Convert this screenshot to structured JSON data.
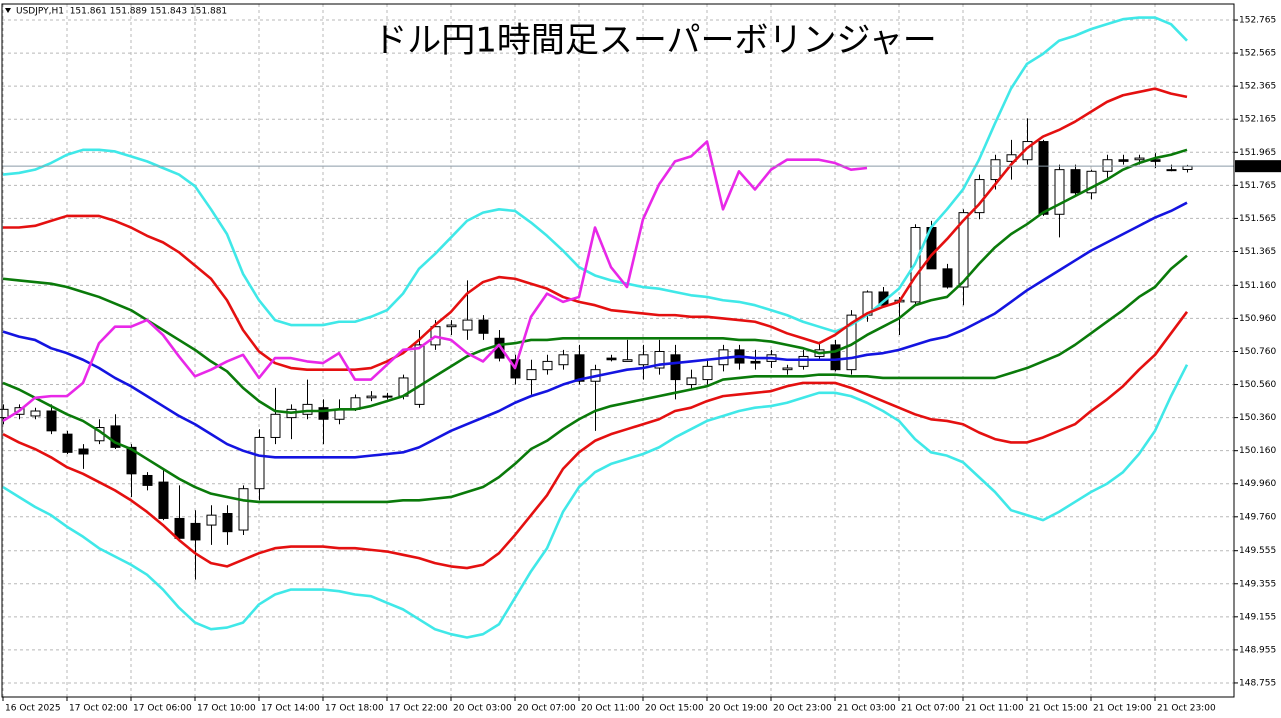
{
  "chart_data": {
    "type": "candlestick",
    "title": "ドル円1時間足スーパーボリンジャー",
    "symbol_info": "USDJPY,H1  151.861 151.889 151.843 151.881",
    "last_price": 151.881,
    "grid": true,
    "ylim": [
      148.67,
      152.862
    ],
    "yticks": [
      152.765,
      152.565,
      152.365,
      152.165,
      151.965,
      151.765,
      151.565,
      151.365,
      {
        "value": 151.16,
        "label": "151.160"
      },
      {
        "value": 150.96,
        "label": "150.960"
      },
      {
        "value": 150.76,
        "label": "150.760"
      },
      {
        "value": 150.56,
        "label": "150.560"
      },
      {
        "value": 150.36,
        "label": "150.360"
      },
      {
        "value": 150.16,
        "label": "150.160"
      },
      {
        "value": 149.96,
        "label": "149.960"
      },
      {
        "value": 149.76,
        "label": "149.760"
      },
      149.555,
      149.355,
      149.155,
      148.955,
      148.755
    ],
    "categories": [
      "16 Oct 2025",
      null,
      null,
      null,
      "17 Oct 02:00",
      null,
      null,
      null,
      "17 Oct 06:00",
      null,
      null,
      null,
      "17 Oct 10:00",
      null,
      null,
      null,
      "17 Oct 14:00",
      null,
      null,
      null,
      "17 Oct 18:00",
      null,
      null,
      null,
      "17 Oct 22:00",
      null,
      null,
      null,
      "20 Oct 03:00",
      null,
      null,
      null,
      "20 Oct 07:00",
      null,
      null,
      null,
      "20 Oct 11:00",
      null,
      null,
      null,
      "20 Oct 15:00",
      null,
      null,
      null,
      "20 Oct 19:00",
      null,
      null,
      null,
      "20 Oct 23:00",
      null,
      null,
      null,
      "21 Oct 03:00",
      null,
      null,
      null,
      "21 Oct 07:00",
      null,
      null,
      null,
      "21 Oct 11:00",
      null,
      null,
      null,
      "21 Oct 15:00",
      null,
      null,
      null,
      "21 Oct 19:00",
      null,
      null,
      null,
      "21 Oct 23:00",
      null,
      null
    ],
    "candles": {
      "up_color": "#ffffff",
      "down_color": "#000000",
      "open": [
        150.36,
        150.38,
        150.37,
        150.4,
        150.26,
        150.17,
        150.22,
        150.31,
        150.18,
        150.01,
        149.97,
        149.75,
        149.72,
        149.71,
        149.78,
        149.68,
        149.93,
        150.24,
        150.36,
        150.38,
        150.42,
        150.35,
        150.41,
        150.48,
        150.49,
        150.49,
        150.44,
        150.8,
        150.91,
        150.89,
        150.95,
        150.84,
        150.71,
        150.59,
        150.65,
        150.68,
        150.74,
        150.58,
        150.72,
        150.7,
        150.68,
        150.66,
        150.74,
        150.56,
        150.59,
        150.68,
        150.77,
        150.7,
        150.7,
        150.65,
        150.67,
        150.73,
        150.8,
        150.65,
        150.98,
        151.12,
        151.06,
        151.06,
        151.51,
        151.26,
        151.15,
        151.6,
        151.8,
        151.91,
        151.92,
        152.03,
        151.59,
        151.86,
        151.72,
        151.85,
        151.92,
        151.92,
        151.92,
        151.86,
        151.861
      ],
      "high": [
        150.44,
        150.44,
        150.42,
        150.44,
        150.28,
        150.2,
        150.35,
        150.38,
        150.2,
        150.03,
        150.05,
        149.95,
        149.8,
        149.83,
        149.83,
        149.95,
        150.29,
        150.54,
        150.44,
        150.59,
        150.47,
        150.47,
        150.5,
        150.52,
        150.51,
        150.62,
        150.89,
        150.95,
        150.95,
        151.19,
        150.98,
        150.89,
        150.74,
        150.71,
        150.74,
        150.77,
        150.8,
        150.68,
        150.74,
        150.83,
        150.8,
        150.83,
        150.8,
        150.65,
        150.71,
        150.8,
        150.8,
        150.77,
        150.77,
        150.68,
        150.77,
        150.82,
        150.83,
        151.01,
        151.13,
        151.15,
        151.09,
        151.53,
        151.55,
        151.29,
        151.62,
        151.83,
        151.95,
        152.04,
        152.17,
        152.04,
        151.89,
        151.89,
        151.86,
        151.95,
        151.95,
        151.95,
        151.96,
        151.89,
        151.889
      ],
      "low": [
        150.32,
        150.35,
        150.35,
        150.26,
        150.14,
        150.05,
        150.2,
        150.17,
        149.88,
        149.92,
        149.74,
        149.62,
        149.38,
        149.59,
        149.59,
        149.65,
        149.86,
        150.2,
        150.23,
        150.35,
        150.2,
        150.32,
        150.4,
        150.46,
        150.47,
        150.47,
        150.42,
        150.77,
        150.86,
        150.83,
        150.83,
        150.7,
        150.56,
        150.5,
        150.62,
        150.65,
        150.56,
        150.28,
        150.7,
        150.7,
        150.59,
        150.62,
        150.47,
        150.53,
        150.56,
        150.64,
        150.65,
        150.65,
        150.66,
        150.62,
        150.65,
        150.71,
        150.64,
        150.62,
        150.94,
        151.04,
        150.86,
        151.04,
        151.26,
        151.14,
        151.04,
        151.56,
        151.74,
        151.8,
        151.89,
        151.58,
        151.45,
        151.7,
        151.68,
        151.81,
        151.89,
        151.89,
        151.87,
        151.85,
        151.843
      ],
      "close": [
        150.41,
        150.42,
        150.4,
        150.28,
        150.15,
        150.14,
        150.3,
        150.18,
        150.02,
        149.95,
        149.75,
        149.63,
        149.62,
        149.77,
        149.67,
        149.93,
        150.24,
        150.38,
        150.41,
        150.44,
        150.35,
        150.41,
        150.48,
        150.49,
        150.49,
        150.6,
        150.8,
        150.91,
        150.92,
        150.95,
        150.87,
        150.72,
        150.6,
        150.65,
        150.7,
        150.74,
        150.58,
        150.65,
        150.71,
        150.71,
        150.74,
        150.76,
        150.59,
        150.6,
        150.67,
        150.77,
        150.69,
        150.69,
        150.74,
        150.66,
        150.73,
        150.77,
        150.65,
        150.98,
        151.12,
        151.04,
        151.07,
        151.51,
        151.26,
        151.15,
        151.6,
        151.8,
        151.92,
        151.95,
        152.03,
        151.59,
        151.86,
        151.72,
        151.85,
        151.92,
        151.91,
        151.93,
        151.91,
        151.86,
        151.881
      ]
    },
    "series": [
      {
        "color": "#40e8e8",
        "values": [
          151.83,
          151.84,
          151.86,
          151.9,
          151.95,
          151.98,
          151.98,
          151.97,
          151.94,
          151.91,
          151.87,
          151.83,
          151.76,
          151.62,
          151.47,
          151.23,
          151.07,
          150.95,
          150.92,
          150.92,
          150.92,
          150.94,
          150.94,
          150.97,
          151.01,
          151.11,
          151.26,
          151.35,
          151.45,
          151.55,
          151.6,
          151.62,
          151.61,
          151.54,
          151.46,
          151.37,
          151.27,
          151.22,
          151.19,
          151.17,
          151.15,
          151.14,
          151.12,
          151.1,
          151.09,
          151.07,
          151.06,
          151.04,
          151.01,
          150.98,
          150.94,
          150.91,
          150.88,
          150.92,
          150.98,
          151.06,
          151.14,
          151.29,
          151.51,
          151.62,
          151.74,
          151.92,
          152.14,
          152.35,
          152.5,
          152.56,
          152.64,
          152.67,
          152.71,
          152.74,
          152.77,
          152.78,
          152.78,
          152.74,
          152.64
        ]
      },
      {
        "color": "#40e8e8",
        "values": [
          149.94,
          149.88,
          149.82,
          149.77,
          149.7,
          149.64,
          149.57,
          149.52,
          149.47,
          149.41,
          149.32,
          149.21,
          149.12,
          149.08,
          149.09,
          149.12,
          149.23,
          149.29,
          149.32,
          149.32,
          149.32,
          149.31,
          149.29,
          149.28,
          149.24,
          149.2,
          149.14,
          149.08,
          149.05,
          149.03,
          149.05,
          149.11,
          149.27,
          149.43,
          149.57,
          149.79,
          149.94,
          150.03,
          150.08,
          150.11,
          150.14,
          150.18,
          150.24,
          150.29,
          150.34,
          150.37,
          150.4,
          150.42,
          150.43,
          150.45,
          150.48,
          150.51,
          150.51,
          150.49,
          150.45,
          150.4,
          150.34,
          150.23,
          150.15,
          150.13,
          150.09,
          150.0,
          149.91,
          149.8,
          149.77,
          149.74,
          149.79,
          149.85,
          149.91,
          149.96,
          150.03,
          150.14,
          150.28,
          150.49,
          150.68
        ]
      },
      {
        "color": "#e41010",
        "values": [
          151.51,
          151.51,
          151.52,
          151.55,
          151.58,
          151.58,
          151.58,
          151.55,
          151.51,
          151.46,
          151.42,
          151.36,
          151.28,
          151.2,
          151.07,
          150.89,
          150.76,
          150.69,
          150.66,
          150.65,
          150.65,
          150.65,
          150.65,
          150.66,
          150.7,
          150.75,
          150.83,
          150.92,
          151.0,
          151.11,
          151.18,
          151.21,
          151.2,
          151.17,
          151.14,
          151.09,
          151.06,
          151.04,
          151.01,
          151.0,
          150.99,
          150.98,
          150.98,
          150.97,
          150.97,
          150.96,
          150.95,
          150.94,
          150.91,
          150.87,
          150.84,
          150.81,
          150.86,
          150.93,
          150.99,
          151.03,
          151.06,
          151.21,
          151.34,
          151.44,
          151.55,
          151.65,
          151.77,
          151.89,
          151.99,
          152.06,
          152.1,
          152.15,
          152.21,
          152.27,
          152.31,
          152.33,
          152.35,
          152.32,
          152.3
        ]
      },
      {
        "color": "#e41010",
        "values": [
          150.26,
          150.21,
          150.17,
          150.12,
          150.06,
          150.02,
          149.97,
          149.92,
          149.86,
          149.79,
          149.71,
          149.62,
          149.54,
          149.48,
          149.46,
          149.5,
          149.54,
          149.57,
          149.58,
          149.58,
          149.58,
          149.57,
          149.57,
          149.56,
          149.55,
          149.53,
          149.51,
          149.48,
          149.46,
          149.45,
          149.47,
          149.54,
          149.65,
          149.77,
          149.89,
          150.05,
          150.15,
          150.22,
          150.26,
          150.29,
          150.32,
          150.35,
          150.4,
          150.42,
          150.46,
          150.49,
          150.5,
          150.51,
          150.52,
          150.55,
          150.57,
          150.57,
          150.57,
          150.54,
          150.5,
          150.46,
          150.42,
          150.38,
          150.35,
          150.34,
          150.32,
          150.27,
          150.23,
          150.21,
          150.21,
          150.24,
          150.28,
          150.32,
          150.4,
          150.47,
          150.55,
          150.65,
          150.74,
          150.87,
          151.0
        ]
      },
      {
        "color": "#0a7a0a",
        "values": [
          151.2,
          151.19,
          151.18,
          151.17,
          151.15,
          151.12,
          151.09,
          151.05,
          151.01,
          150.95,
          150.89,
          150.83,
          150.77,
          150.7,
          150.64,
          150.54,
          150.46,
          150.4,
          150.39,
          150.4,
          150.4,
          150.41,
          150.41,
          150.43,
          150.46,
          150.49,
          150.55,
          150.61,
          150.67,
          150.73,
          150.77,
          150.8,
          150.81,
          150.83,
          150.83,
          150.84,
          150.84,
          150.84,
          150.84,
          150.84,
          150.84,
          150.84,
          150.84,
          150.84,
          150.84,
          150.84,
          150.83,
          150.83,
          150.82,
          150.8,
          150.78,
          150.75,
          150.76,
          150.8,
          150.86,
          150.91,
          150.96,
          151.04,
          151.07,
          151.09,
          151.18,
          151.29,
          151.39,
          151.47,
          151.53,
          151.6,
          151.65,
          151.7,
          151.75,
          151.8,
          151.86,
          151.9,
          151.93,
          151.95,
          151.98
        ]
      },
      {
        "color": "#0a7a0a",
        "values": [
          150.57,
          150.53,
          150.48,
          150.43,
          150.38,
          150.34,
          150.28,
          150.21,
          150.17,
          150.11,
          150.05,
          149.99,
          149.94,
          149.9,
          149.88,
          149.86,
          149.85,
          149.85,
          149.85,
          149.85,
          149.85,
          149.85,
          149.85,
          149.85,
          149.85,
          149.86,
          149.86,
          149.87,
          149.88,
          149.91,
          149.94,
          150.0,
          150.08,
          150.17,
          150.22,
          150.29,
          150.35,
          150.4,
          150.43,
          150.45,
          150.47,
          150.49,
          150.51,
          150.53,
          150.55,
          150.59,
          150.6,
          150.61,
          150.61,
          150.61,
          150.61,
          150.62,
          150.62,
          150.61,
          150.61,
          150.6,
          150.6,
          150.6,
          150.6,
          150.6,
          150.6,
          150.6,
          150.6,
          150.63,
          150.66,
          150.7,
          150.74,
          150.8,
          150.87,
          150.94,
          151.01,
          151.09,
          151.15,
          151.26,
          151.34
        ]
      },
      {
        "color": "#1414e0",
        "values": [
          150.88,
          150.85,
          150.83,
          150.78,
          150.75,
          150.71,
          150.66,
          150.6,
          150.55,
          150.49,
          150.43,
          150.37,
          150.32,
          150.26,
          150.2,
          150.16,
          150.13,
          150.12,
          150.12,
          150.12,
          150.12,
          150.12,
          150.12,
          150.13,
          150.14,
          150.15,
          150.18,
          150.23,
          150.28,
          150.32,
          150.36,
          150.4,
          150.45,
          150.49,
          150.52,
          150.56,
          150.59,
          150.61,
          150.63,
          150.65,
          150.66,
          150.68,
          150.69,
          150.7,
          150.71,
          150.72,
          150.73,
          150.72,
          150.72,
          150.71,
          150.71,
          150.71,
          150.71,
          150.72,
          150.74,
          150.75,
          150.77,
          150.8,
          150.83,
          150.85,
          150.89,
          150.94,
          150.99,
          151.06,
          151.13,
          151.19,
          151.25,
          151.31,
          151.37,
          151.42,
          151.47,
          151.52,
          151.57,
          151.61,
          151.66
        ]
      },
      {
        "color": "#e828e8",
        "values": [
          150.34,
          150.4,
          150.48,
          150.49,
          150.49,
          150.57,
          150.81,
          150.91,
          150.91,
          150.95,
          150.86,
          150.73,
          150.61,
          150.65,
          150.7,
          150.74,
          150.6,
          150.72,
          150.72,
          150.7,
          150.69,
          150.75,
          150.59,
          150.59,
          150.68,
          150.77,
          150.78,
          150.85,
          150.83,
          150.75,
          150.7,
          150.8,
          150.66,
          150.97,
          151.11,
          151.06,
          151.09,
          151.51,
          151.27,
          151.15,
          151.56,
          151.77,
          151.91,
          151.94,
          152.03,
          151.62,
          151.85,
          151.74,
          151.86,
          151.92,
          151.92,
          151.92,
          151.9,
          151.86,
          151.87,
          null,
          null,
          null,
          null,
          null,
          null,
          null,
          null,
          null,
          null,
          null,
          null,
          null,
          null,
          null,
          null,
          null,
          null,
          null,
          null
        ]
      }
    ]
  }
}
